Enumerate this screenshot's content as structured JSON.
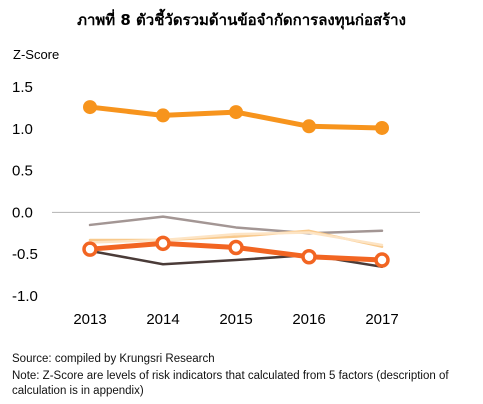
{
  "title": "ภาพที่ 8 ตัวชี้วัดรวมด้านข้อจำกัดการลงทุนก่อสร้าง",
  "source": "Source: compiled by Krungsri Research",
  "note": "Note: Z-Score are levels of risk indicators that calculated from 5 factors (description of calculation is in appendix)",
  "chart_data": {
    "type": "line",
    "title": "ภาพที่ 8 ตัวชี้วัดรวมด้านข้อจำกัดการลงทุนก่อสร้าง",
    "xlabel": "",
    "ylabel": "Z-Score",
    "categories": [
      "2013",
      "2014",
      "2015",
      "2016",
      "2017"
    ],
    "y_ticks": [
      "1.5",
      "1.0",
      "0.5",
      "0.0",
      "-0.5",
      "-1.0"
    ],
    "ylim": [
      -1.0,
      1.5
    ],
    "grid": false,
    "legend": "none",
    "series": [
      {
        "values": [
          1.26,
          1.16,
          1.2,
          1.03,
          1.01
        ],
        "color": "#f7941d",
        "style": "thick-solid-markers"
      },
      {
        "values": [
          -0.44,
          -0.37,
          -0.42,
          -0.53,
          -0.57
        ],
        "color": "#f26522",
        "style": "thick-hollow-markers"
      },
      {
        "values": [
          -0.46,
          -0.62,
          -0.57,
          -0.51,
          -0.65
        ],
        "color": "#4a3b38",
        "style": "thin"
      },
      {
        "values": [
          -0.15,
          -0.05,
          -0.18,
          -0.25,
          -0.22
        ],
        "color": "#a39694",
        "style": "thin"
      },
      {
        "values": [
          -0.33,
          -0.33,
          -0.29,
          -0.22,
          -0.41
        ],
        "color": "#f8c98c",
        "style": "thin"
      },
      {
        "values": [
          -0.36,
          -0.33,
          -0.26,
          -0.24,
          -0.39
        ],
        "color": "#fde4c4",
        "style": "thin"
      }
    ]
  }
}
